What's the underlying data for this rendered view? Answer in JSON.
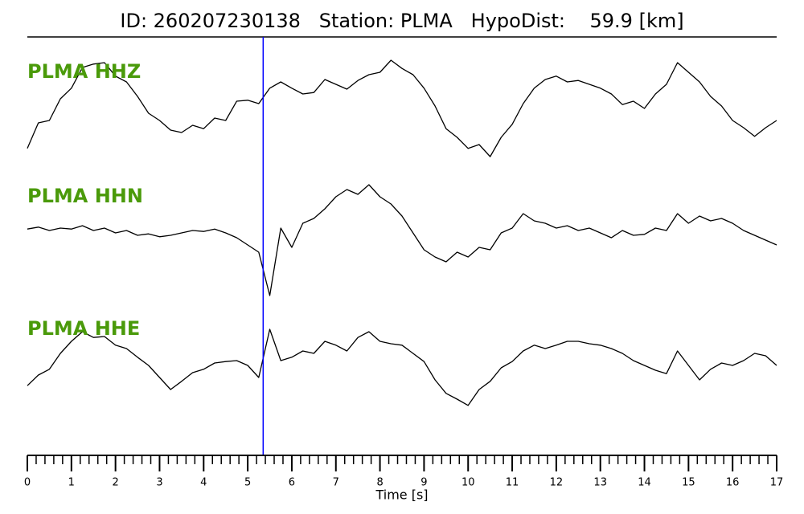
{
  "chart_data": {
    "type": "seismogram",
    "title": "ID: 260207230138   Station: PLMA   HypoDist:    59.9 [km]",
    "xlabel": "Time [s]",
    "xlim": [
      0,
      17
    ],
    "xticks": [
      0,
      1,
      2,
      3,
      4,
      5,
      6,
      7,
      8,
      9,
      10,
      11,
      12,
      13,
      14,
      15,
      16,
      17
    ],
    "xminorticks": [
      0.2,
      0.4,
      0.6,
      0.8,
      1.2,
      1.4,
      1.6,
      1.8,
      2.2,
      2.4,
      2.6,
      2.8,
      3.2,
      3.4,
      3.6,
      3.8,
      4.2,
      4.4,
      4.6,
      4.8,
      5.2,
      5.4,
      5.6,
      5.8,
      6.2,
      6.4,
      6.6,
      6.8,
      7.2,
      7.4,
      7.6,
      7.8,
      8.2,
      8.4,
      8.6,
      8.8,
      9.2,
      9.4,
      9.6,
      9.8,
      10.2,
      10.4,
      10.6,
      10.8,
      11.2,
      11.4,
      11.6,
      11.8,
      12.2,
      12.4,
      12.6,
      12.8,
      13.2,
      13.4,
      13.6,
      13.8,
      14.2,
      14.4,
      14.6,
      14.8,
      15.2,
      15.4,
      15.6,
      15.8,
      16.2,
      16.4,
      16.6,
      16.8
    ],
    "ylim": [
      -1.5,
      1.5
    ],
    "label_color": "#4a9a0a",
    "pick": {
      "x": 5.35,
      "color": "#0000ff"
    },
    "x": [
      0,
      0.25,
      0.5,
      0.75,
      1,
      1.25,
      1.5,
      1.75,
      2,
      2.25,
      2.5,
      2.75,
      3,
      3.25,
      3.5,
      3.75,
      4,
      4.25,
      4.5,
      4.75,
      5,
      5.25,
      5.5,
      5.75,
      6,
      6.25,
      6.5,
      6.75,
      7,
      7.25,
      7.5,
      7.75,
      8,
      8.25,
      8.5,
      8.75,
      9,
      9.25,
      9.5,
      9.75,
      10,
      10.25,
      10.5,
      10.75,
      11,
      11.25,
      11.5,
      11.75,
      12,
      12.25,
      12.5,
      12.75,
      13,
      13.25,
      13.5,
      13.75,
      14,
      14.25,
      14.5,
      14.75,
      15,
      15.25,
      15.5,
      15.75,
      16,
      16.25,
      16.5,
      16.75,
      17
    ],
    "series": [
      {
        "name": "PLMA HHZ",
        "color": "#000000",
        "values": [
          -0.83,
          -0.3,
          -0.25,
          0.2,
          0.42,
          0.85,
          0.92,
          0.95,
          0.67,
          0.55,
          0.25,
          -0.1,
          -0.25,
          -0.45,
          -0.5,
          -0.35,
          -0.42,
          -0.2,
          -0.25,
          0.15,
          0.17,
          0.1,
          0.42,
          0.55,
          0.42,
          0.3,
          0.33,
          0.6,
          0.5,
          0.4,
          0.58,
          0.7,
          0.75,
          1.0,
          0.83,
          0.7,
          0.42,
          0.05,
          -0.42,
          -0.6,
          -0.83,
          -0.75,
          -1.0,
          -0.6,
          -0.33,
          0.1,
          0.42,
          0.6,
          0.67,
          0.55,
          0.58,
          0.5,
          0.42,
          0.3,
          0.08,
          0.15,
          0,
          0.3,
          0.5,
          0.95,
          0.75,
          0.55,
          0.25,
          0.05,
          -0.25,
          -0.4,
          -0.58,
          -0.4,
          -0.25
        ]
      },
      {
        "name": "PLMA HHN",
        "color": "#000000",
        "values": [
          0.08,
          0.12,
          0.05,
          0.1,
          0.08,
          0.15,
          0.05,
          0.1,
          0,
          0.05,
          -0.05,
          -0.02,
          -0.08,
          -0.05,
          0,
          0.05,
          0.03,
          0.08,
          0,
          -0.1,
          -0.25,
          -0.4,
          -1.3,
          0.1,
          -0.3,
          0.2,
          0.3,
          0.5,
          0.75,
          0.9,
          0.8,
          1.0,
          0.75,
          0.6,
          0.35,
          0,
          -0.35,
          -0.5,
          -0.6,
          -0.4,
          -0.5,
          -0.3,
          -0.35,
          0,
          0.1,
          0.4,
          0.25,
          0.2,
          0.1,
          0.15,
          0.05,
          0.1,
          0,
          -0.1,
          0.05,
          -0.05,
          -0.03,
          0.1,
          0.05,
          0.4,
          0.2,
          0.35,
          0.25,
          0.3,
          0.2,
          0.05,
          -0.05,
          -0.15,
          -0.25
        ]
      },
      {
        "name": "PLMA HHE",
        "color": "#000000",
        "values": [
          -0.42,
          -0.2,
          -0.08,
          0.25,
          0.5,
          0.7,
          0.58,
          0.6,
          0.42,
          0.35,
          0.17,
          0,
          -0.25,
          -0.5,
          -0.33,
          -0.15,
          -0.08,
          0.05,
          0.08,
          0.1,
          0,
          -0.25,
          0.75,
          0.1,
          0.17,
          0.3,
          0.25,
          0.5,
          0.42,
          0.3,
          0.58,
          0.7,
          0.5,
          0.45,
          0.42,
          0.25,
          0.08,
          -0.3,
          -0.58,
          -0.7,
          -0.83,
          -0.5,
          -0.33,
          -0.05,
          0.08,
          0.3,
          0.42,
          0.35,
          0.42,
          0.5,
          0.5,
          0.45,
          0.42,
          0.35,
          0.25,
          0.1,
          0,
          -0.1,
          -0.17,
          0.3,
          0,
          -0.3,
          -0.08,
          0.05,
          0,
          0.1,
          0.25,
          0.2,
          0
        ]
      }
    ]
  }
}
